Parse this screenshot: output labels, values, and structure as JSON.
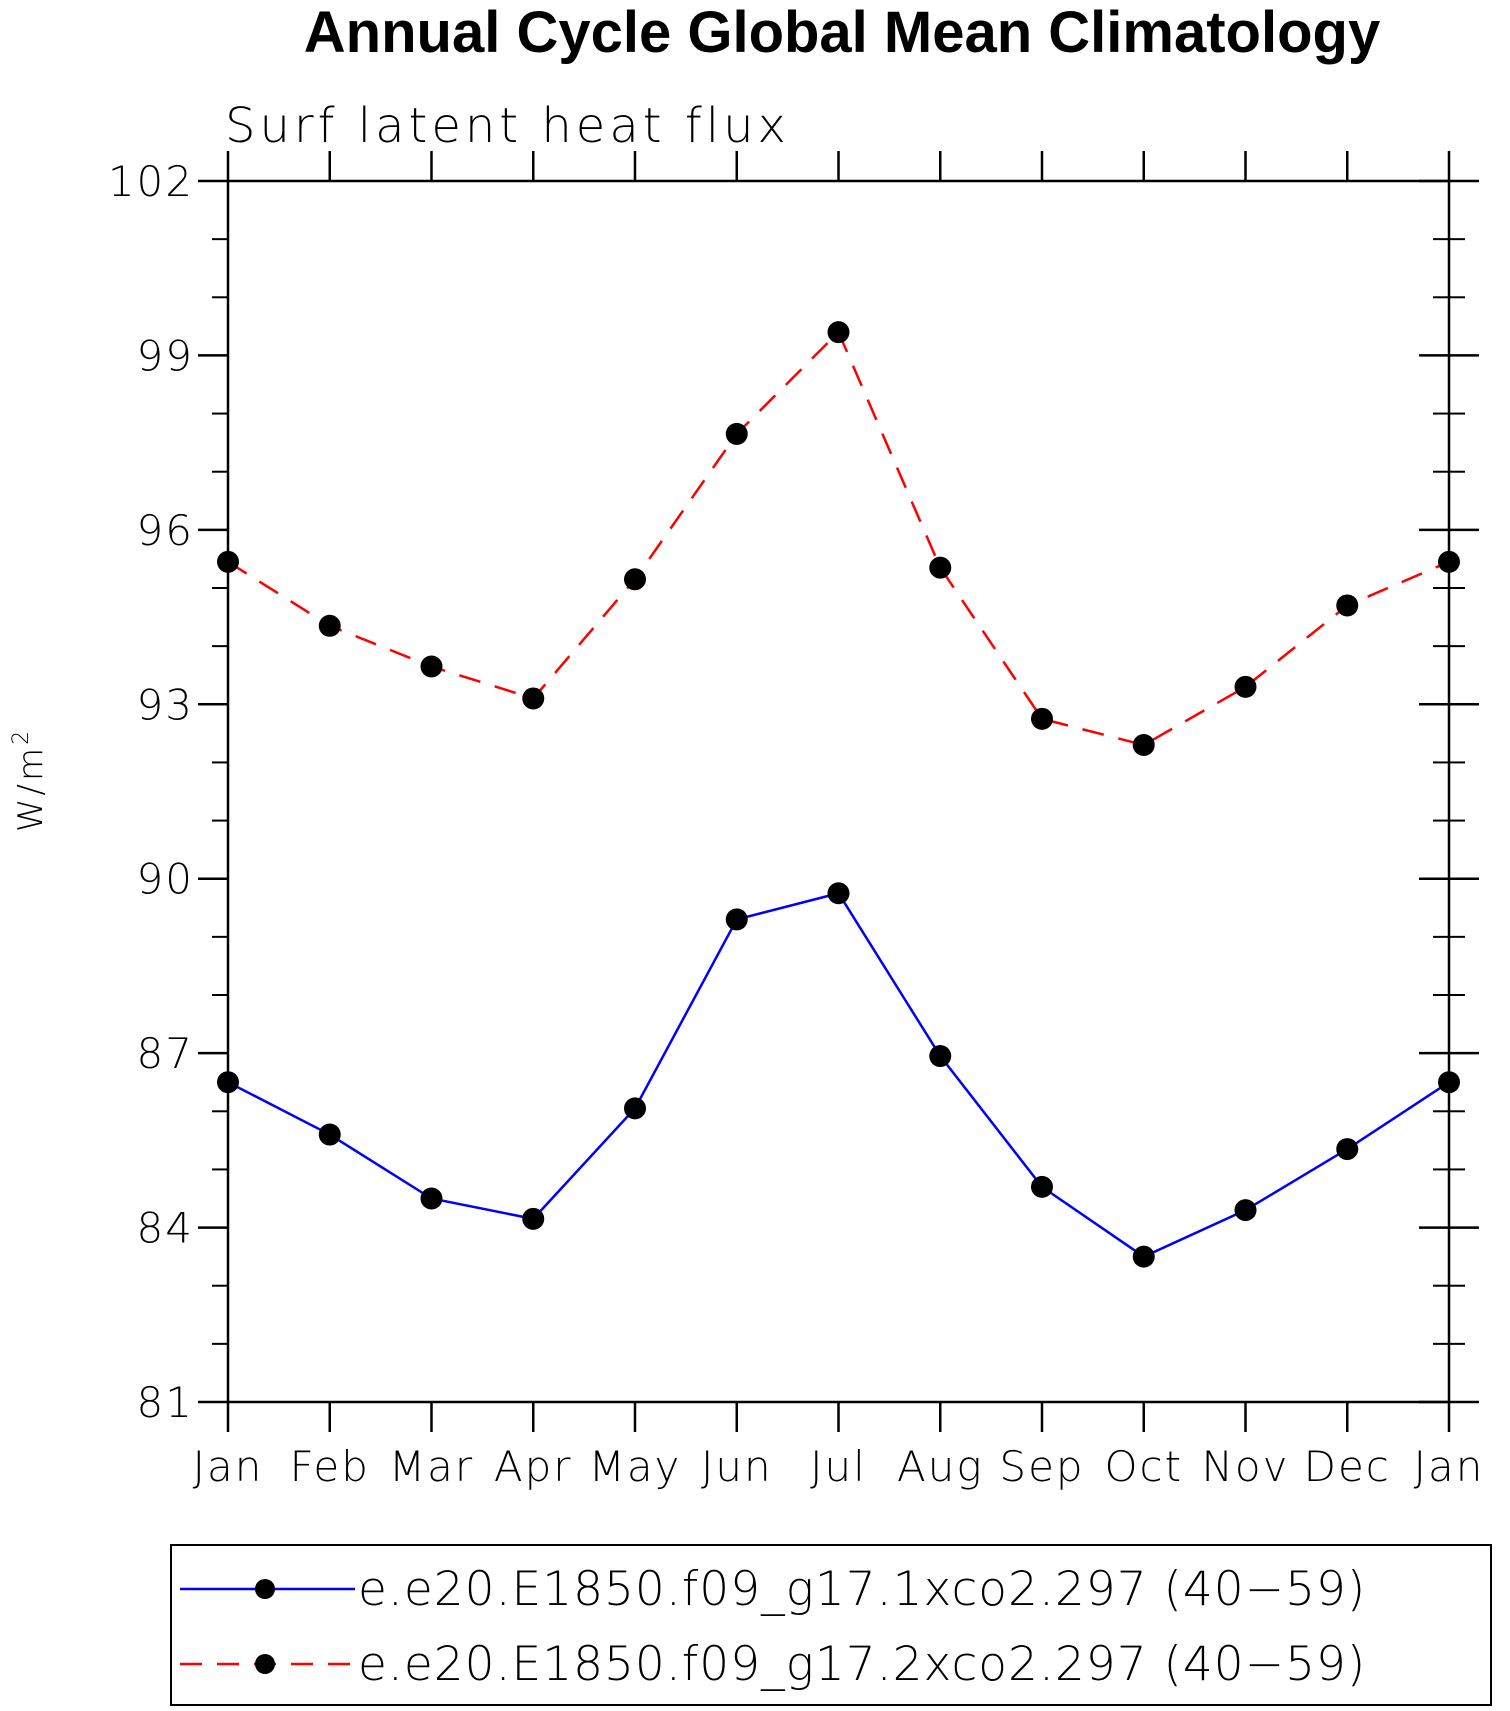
{
  "chart_data": {
    "type": "line",
    "title": "Annual Cycle Global Mean Climatology",
    "subtitle": "Surf latent heat flux",
    "xlabel": "",
    "ylabel_base": "W/m",
    "ylabel_sup": "2",
    "categories": [
      "Jan",
      "Feb",
      "Mar",
      "Apr",
      "May",
      "Jun",
      "Jul",
      "Aug",
      "Sep",
      "Oct",
      "Nov",
      "Dec",
      "Jan"
    ],
    "ylim": [
      81,
      102
    ],
    "yticks": [
      81,
      84,
      87,
      90,
      93,
      96,
      99,
      102
    ],
    "ytick_labels": [
      "81",
      "84",
      "87",
      "90",
      "93",
      "96",
      "99",
      "102"
    ],
    "grid": false,
    "series": [
      {
        "name": "e.e20.E1850.f09_g17.1xco2.297 (40−59)",
        "color": "#0000ff",
        "dash": "solid",
        "marker": "filled-circle",
        "values": [
          86.5,
          85.6,
          84.5,
          84.15,
          86.05,
          89.3,
          89.75,
          86.95,
          84.7,
          83.5,
          84.3,
          85.35,
          86.5
        ]
      },
      {
        "name": "e.e20.E1850.f09_g17.2xco2.297 (40−59)",
        "color": "#ff0000",
        "dash": "dashed",
        "marker": "filled-circle",
        "values": [
          95.45,
          94.35,
          93.65,
          93.1,
          95.15,
          97.65,
          99.4,
          95.35,
          92.75,
          92.3,
          93.3,
          94.7,
          95.45
        ]
      }
    ],
    "legend_position": "bottom"
  },
  "colors": {
    "axis": "#000000",
    "marker": "#000000",
    "background": "#ffffff"
  }
}
